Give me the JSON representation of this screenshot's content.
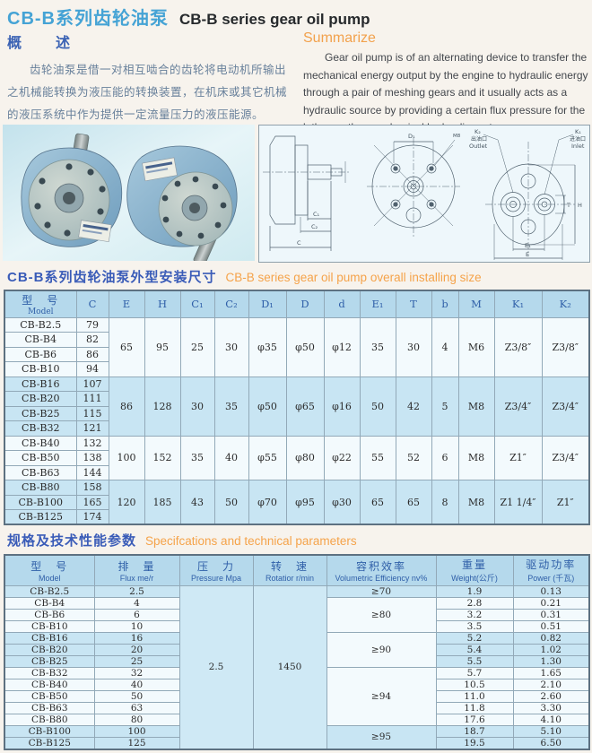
{
  "header": {
    "title_zh": "CB-B系列齿轮油泵",
    "title_en": "CB-B series gear oil pump"
  },
  "overview": {
    "heading_zh": "概　　述",
    "heading_en": "Summarize",
    "body_zh": "齿轮油泵是借一对相互啮合的齿轮将电动机所输出之机械能转换为液压能的转换装置，在机床或其它机械的液压系统中作为提供一定流量压力的液压能源。",
    "body_en": "Gear oil pump is of an alternating device to transfer the mechanical energy output by the engine to hydraulic energy through a pair of meshing gears and it usually acts as a hydraulic source by providing a certain flux pressure for the lathe or other mechanical hydraulic system."
  },
  "figures": {
    "photo_name": "two CB-B gear oil pumps",
    "drawing_labels": {
      "side": {
        "c1": "C₁",
        "c2": "C₂",
        "c": "C"
      },
      "front": {
        "d1": "D₁",
        "m": "M8"
      },
      "ports": {
        "k2": "K₂",
        "outlet_zh": "出油口",
        "outlet_en": "Outlet",
        "k1": "K₁",
        "inlet_zh": "进油口",
        "inlet_en": "Inlet",
        "e1": "E₁",
        "e": "E",
        "h": "H",
        "t": "T"
      }
    }
  },
  "install_section": {
    "heading_zh": "CB-B系列齿轮油泵外型安装尺寸",
    "heading_en": "CB-B series gear oil pump overall installing size"
  },
  "install_table": {
    "model_header_zh": "型　号",
    "model_header_en": "Model",
    "dim_headers": [
      "C",
      "E",
      "H",
      "C₁",
      "C₂",
      "D₁",
      "D",
      "d",
      "E₁",
      "T",
      "b",
      "M",
      "K₁",
      "K₂"
    ],
    "groups": [
      {
        "shaded": false,
        "models": [
          [
            "CB-B2.5",
            "79"
          ],
          [
            "CB-B4",
            "82"
          ],
          [
            "CB-B6",
            "86"
          ],
          [
            "CB-B10",
            "94"
          ]
        ],
        "shared": [
          "65",
          "95",
          "25",
          "30",
          "φ35",
          "φ50",
          "φ12",
          "35",
          "30",
          "4",
          "M6",
          "Z3/8″",
          "Z3/8″"
        ]
      },
      {
        "shaded": true,
        "models": [
          [
            "CB-B16",
            "107"
          ],
          [
            "CB-B20",
            "111"
          ],
          [
            "CB-B25",
            "115"
          ],
          [
            "CB-B32",
            "121"
          ]
        ],
        "shared": [
          "86",
          "128",
          "30",
          "35",
          "φ50",
          "φ65",
          "φ16",
          "50",
          "42",
          "5",
          "M8",
          "Z3/4″",
          "Z3/4″"
        ]
      },
      {
        "shaded": false,
        "models": [
          [
            "CB-B40",
            "132"
          ],
          [
            "CB-B50",
            "138"
          ],
          [
            "CB-B63",
            "144"
          ]
        ],
        "shared": [
          "100",
          "152",
          "35",
          "40",
          "φ55",
          "φ80",
          "φ22",
          "55",
          "52",
          "6",
          "M8",
          "Z1″",
          "Z3/4″"
        ]
      },
      {
        "shaded": true,
        "models": [
          [
            "CB-B80",
            "158"
          ],
          [
            "CB-B100",
            "165"
          ],
          [
            "CB-B125",
            "174"
          ]
        ],
        "shared": [
          "120",
          "185",
          "43",
          "50",
          "φ70",
          "φ95",
          "φ30",
          "65",
          "65",
          "8",
          "M8",
          "Z1 1/4″",
          "Z1″"
        ]
      }
    ]
  },
  "spec_section": {
    "heading_zh": "规格及技术性能参数",
    "heading_en": "Specifcations and technical parameters"
  },
  "spec_table": {
    "headers": [
      {
        "zh": "型　号",
        "en": "Model"
      },
      {
        "zh": "排　量",
        "en": "Flux me/r"
      },
      {
        "zh": "压　力",
        "en": "Pressure Mpa"
      },
      {
        "zh": "转　速",
        "en": "Rotatior r/min"
      },
      {
        "zh": "容积效率",
        "en": "Volumetric Efficiency nv%"
      },
      {
        "zh": "重量",
        "en": "Weight(公斤)"
      },
      {
        "zh": "驱动功率",
        "en": "Power (千瓦)"
      }
    ],
    "pressure": "2.5",
    "rotation": "1450",
    "groups": [
      {
        "shaded": true,
        "eff_shaded": true,
        "efficiency": "≥70",
        "rows": [
          [
            "CB-B2.5",
            "2.5",
            "1.9",
            "0.13"
          ]
        ]
      },
      {
        "shaded": false,
        "eff_shaded": false,
        "efficiency": "≥80",
        "rows": [
          [
            "CB-B4",
            "4",
            "2.8",
            "0.21"
          ],
          [
            "CB-B6",
            "6",
            "3.2",
            "0.31"
          ],
          [
            "CB-B10",
            "10",
            "3.5",
            "0.51"
          ]
        ]
      },
      {
        "shaded": true,
        "eff_shaded": false,
        "efficiency": "≥90",
        "rows": [
          [
            "CB-B16",
            "16",
            "5.2",
            "0.82"
          ],
          [
            "CB-B20",
            "20",
            "5.4",
            "1.02"
          ],
          [
            "CB-B25",
            "25",
            "5.5",
            "1.30"
          ]
        ]
      },
      {
        "shaded": false,
        "eff_shaded": false,
        "efficiency": "≥94",
        "rows": [
          [
            "CB-B32",
            "32",
            "5.7",
            "1.65"
          ],
          [
            "CB-B40",
            "40",
            "10.5",
            "2.10"
          ],
          [
            "CB-B50",
            "50",
            "11.0",
            "2.60"
          ],
          [
            "CB-B63",
            "63",
            "11.8",
            "3.30"
          ],
          [
            "CB-B80",
            "80",
            "17.6",
            "4.10"
          ]
        ]
      },
      {
        "shaded": true,
        "eff_shaded": true,
        "efficiency": "≥95",
        "rows": [
          [
            "CB-B100",
            "100",
            "18.7",
            "5.10"
          ],
          [
            "CB-B125",
            "125",
            "19.5",
            "6.50"
          ]
        ]
      }
    ]
  }
}
